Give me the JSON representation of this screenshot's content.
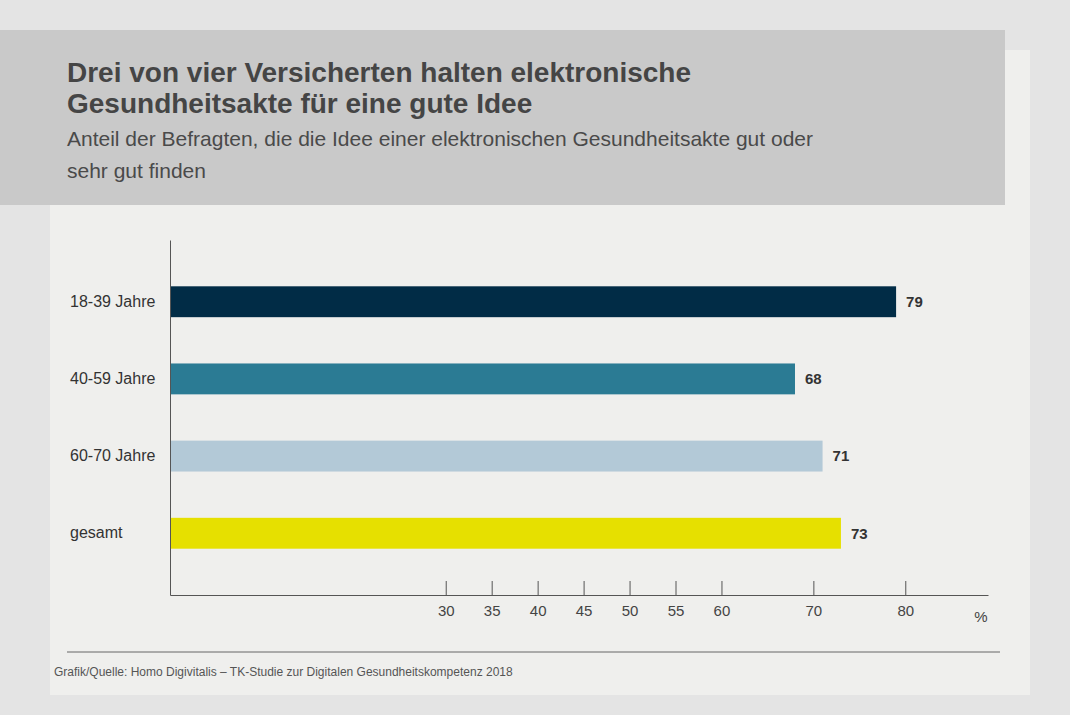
{
  "chart_data": {
    "type": "bar",
    "orientation": "horizontal",
    "title": [
      "Drei von vier Versicherten halten elektronische",
      "Gesundheitsakte für eine gute Idee"
    ],
    "subtitle": [
      "Anteil der Befragten, die die Idee einer elektronischen Gesundheitsakte gut oder",
      "sehr gut finden"
    ],
    "categories": [
      "18-39 Jahre",
      "40-59 Jahre",
      "60-70 Jahre",
      "gesamt"
    ],
    "values": [
      79,
      68,
      71,
      73
    ],
    "colors": [
      "#012c46",
      "#2b7b94",
      "#b3c9d7",
      "#e6e000"
    ],
    "xlim": [
      0,
      89
    ],
    "xticks": [
      30,
      35,
      40,
      45,
      50,
      55,
      60,
      70,
      80
    ],
    "xlabel": "%",
    "data_labels": true,
    "grid": false,
    "source": "Grafik/Quelle: Homo Digivitalis – TK-Studie zur Digitalen Gesundheitskompetenz 2018"
  }
}
